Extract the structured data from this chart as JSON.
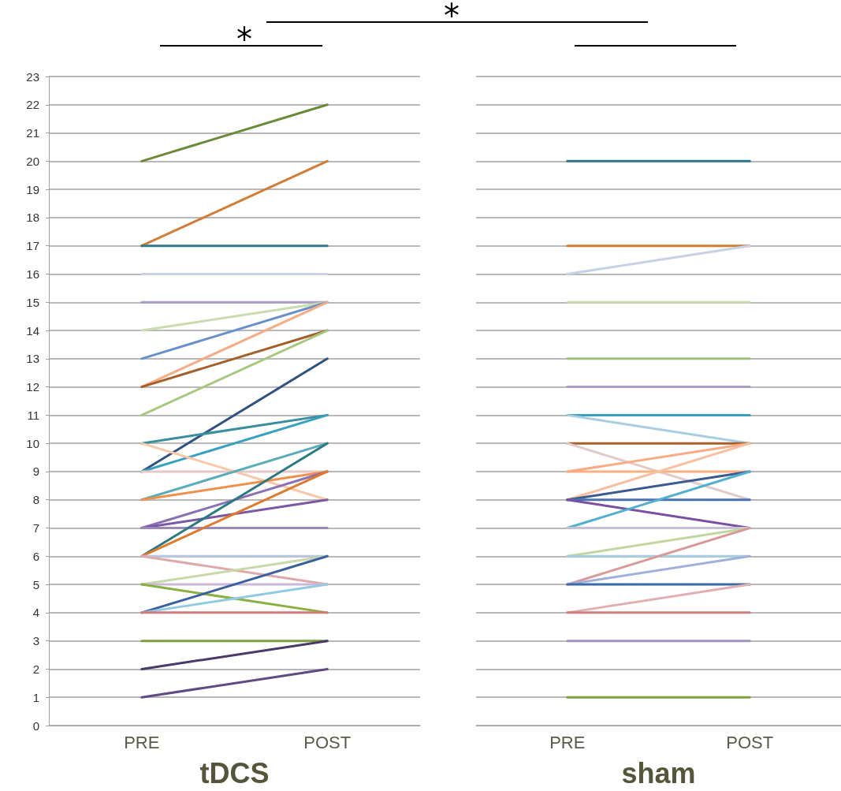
{
  "chart_data": [
    {
      "type": "line",
      "xlabel": "tDCS",
      "categories": [
        "PRE",
        "POST"
      ],
      "ylim": [
        0,
        23
      ],
      "yticks": [
        0,
        1,
        2,
        3,
        4,
        5,
        6,
        7,
        8,
        9,
        10,
        11,
        12,
        13,
        14,
        15,
        16,
        17,
        18,
        19,
        20,
        21,
        22,
        23
      ],
      "grid": "y",
      "marker": "none",
      "annotations": [
        "*",
        "*"
      ],
      "series": [
        {
          "color": "#6a8a38",
          "values": [
            20,
            22
          ]
        },
        {
          "color": "#d27c34",
          "values": [
            17,
            20
          ]
        },
        {
          "color": "#2e7a8c",
          "values": [
            17,
            17
          ]
        },
        {
          "color": "#c6d2e6",
          "values": [
            16,
            16
          ]
        },
        {
          "color": "#ab9ec8",
          "values": [
            15,
            15
          ]
        },
        {
          "color": "#c8dcb0",
          "values": [
            14,
            15
          ]
        },
        {
          "color": "#6a90cc",
          "values": [
            13,
            15
          ]
        },
        {
          "color": "#f6ac84",
          "values": [
            12,
            15
          ]
        },
        {
          "color": "#a3602a",
          "values": [
            12,
            14
          ]
        },
        {
          "color": "#a8c880",
          "values": [
            11,
            14
          ]
        },
        {
          "color": "#2f5282",
          "values": [
            9,
            13
          ]
        },
        {
          "color": "#3a8e9e",
          "values": [
            10,
            11
          ]
        },
        {
          "color": "#3aa0c0",
          "values": [
            9,
            11
          ]
        },
        {
          "color": "#f8c8aa",
          "values": [
            10,
            8
          ]
        },
        {
          "color": "#e6c8c6",
          "values": [
            9,
            9
          ]
        },
        {
          "color": "#5aacba",
          "values": [
            8,
            10
          ]
        },
        {
          "color": "#f0904a",
          "values": [
            8,
            9
          ]
        },
        {
          "color": "#8a72b2",
          "values": [
            7,
            9
          ]
        },
        {
          "color": "#7a58a2",
          "values": [
            7,
            8
          ]
        },
        {
          "color": "#9a88bc",
          "values": [
            7,
            7
          ]
        },
        {
          "color": "#2a7a82",
          "values": [
            6,
            10
          ]
        },
        {
          "color": "#e07a2a",
          "values": [
            6,
            9
          ]
        },
        {
          "color": "#b8c8e0",
          "values": [
            6,
            6
          ]
        },
        {
          "color": "#dcaaaa",
          "values": [
            6,
            5
          ]
        },
        {
          "color": "#c8d8a8",
          "values": [
            5,
            6
          ]
        },
        {
          "color": "#cab8d8",
          "values": [
            5,
            5
          ]
        },
        {
          "color": "#8ab040",
          "values": [
            5,
            4
          ]
        },
        {
          "color": "#3a60a0",
          "values": [
            4,
            6
          ]
        },
        {
          "color": "#92cae0",
          "values": [
            4,
            5
          ]
        },
        {
          "color": "#d07a7a",
          "values": [
            4,
            4
          ]
        },
        {
          "color": "#7aa040",
          "values": [
            3,
            3
          ]
        },
        {
          "color": "#4a3a6a",
          "values": [
            2,
            3
          ]
        },
        {
          "color": "#604a82",
          "values": [
            1,
            2
          ]
        }
      ]
    },
    {
      "type": "line",
      "xlabel": "sham",
      "categories": [
        "PRE",
        "POST"
      ],
      "ylim": [
        0,
        23
      ],
      "yticks": [
        0,
        1,
        2,
        3,
        4,
        5,
        6,
        7,
        8,
        9,
        10,
        11,
        12,
        13,
        14,
        15,
        16,
        17,
        18,
        19,
        20,
        21,
        22,
        23
      ],
      "grid": "y",
      "marker": "none",
      "tick_labels": "x",
      "series": [
        {
          "color": "#2e7a8c",
          "values": [
            20,
            20
          ]
        },
        {
          "color": "#d27c34",
          "values": [
            17,
            17
          ]
        },
        {
          "color": "#c6d2e6",
          "values": [
            16,
            17
          ]
        },
        {
          "color": "#c8dcb0",
          "values": [
            15,
            15
          ]
        },
        {
          "color": "#a0c080",
          "values": [
            13,
            13
          ]
        },
        {
          "color": "#ab9ec8",
          "values": [
            12,
            12
          ]
        },
        {
          "color": "#3aa0c0",
          "values": [
            11,
            11
          ]
        },
        {
          "color": "#a8cce0",
          "values": [
            11,
            10
          ]
        },
        {
          "color": "#a8602a",
          "values": [
            10,
            10
          ]
        },
        {
          "color": "#e2cac8",
          "values": [
            10,
            8
          ]
        },
        {
          "color": "#f8b080",
          "values": [
            9,
            9
          ]
        },
        {
          "color": "#f6ac84",
          "values": [
            9,
            10
          ]
        },
        {
          "color": "#f8c0a0",
          "values": [
            8,
            10
          ]
        },
        {
          "color": "#3a5a90",
          "values": [
            8,
            9
          ]
        },
        {
          "color": "#4a70b0",
          "values": [
            8,
            8
          ]
        },
        {
          "color": "#7a50a0",
          "values": [
            8,
            7
          ]
        },
        {
          "color": "#50b0d0",
          "values": [
            7,
            9
          ]
        },
        {
          "color": "#c8c0d8",
          "values": [
            7,
            7
          ]
        },
        {
          "color": "#c0d8a0",
          "values": [
            6,
            7
          ]
        },
        {
          "color": "#a8d0e0",
          "values": [
            6,
            6
          ]
        },
        {
          "color": "#d89a98",
          "values": [
            5,
            7
          ]
        },
        {
          "color": "#a0b0d8",
          "values": [
            5,
            6
          ]
        },
        {
          "color": "#3a6aa8",
          "values": [
            5,
            5
          ]
        },
        {
          "color": "#e0b0b0",
          "values": [
            4,
            5
          ]
        },
        {
          "color": "#d08080",
          "values": [
            4,
            4
          ]
        },
        {
          "color": "#a090c0",
          "values": [
            3,
            3
          ]
        },
        {
          "color": "#80a040",
          "values": [
            1,
            1
          ]
        }
      ]
    }
  ]
}
